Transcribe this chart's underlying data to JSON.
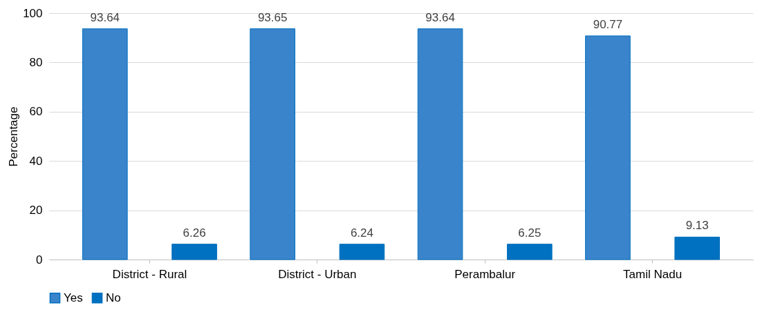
{
  "chart_data": {
    "type": "bar",
    "categories": [
      "District - Rural",
      "District - Urban",
      "Perambalur",
      "Tamil Nadu"
    ],
    "series": [
      {
        "name": "Yes",
        "color": "#3a84cc",
        "values": [
          93.64,
          93.65,
          93.64,
          90.77
        ]
      },
      {
        "name": "No",
        "color": "#0070c0",
        "values": [
          6.26,
          6.24,
          6.25,
          9.13
        ]
      }
    ],
    "ylabel": "Percentage",
    "ylim": [
      0,
      100
    ],
    "yticks": [
      0,
      20,
      40,
      60,
      80,
      100
    ],
    "grid": "y",
    "legend": "bottom",
    "data_labels": true
  }
}
